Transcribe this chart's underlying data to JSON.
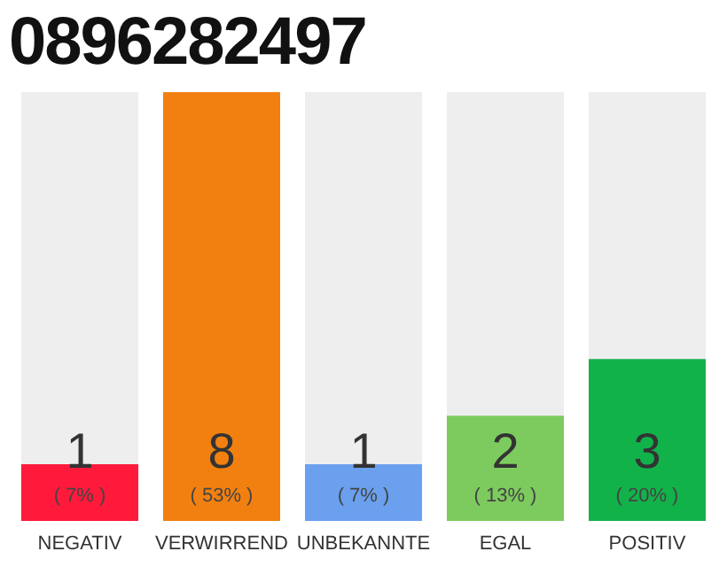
{
  "chart_data": {
    "type": "bar",
    "title": "0896282497",
    "categories": [
      "NEGATIV",
      "VERWIRREND",
      "UNBEKANNTE",
      "EGAL",
      "POSITIV"
    ],
    "values": [
      7,
      53,
      7,
      13,
      20
    ],
    "colors": [
      "#ff1a3c",
      "#f28010",
      "#6aa0ee",
      "#7dcb5f",
      "#12b24a"
    ],
    "value_labels": [
      "( 7% )",
      "( 53% )",
      "( 7% )",
      "( 13% )",
      "( 20% )"
    ],
    "annotations": [
      "1",
      "8",
      "1",
      "2",
      "3"
    ]
  }
}
